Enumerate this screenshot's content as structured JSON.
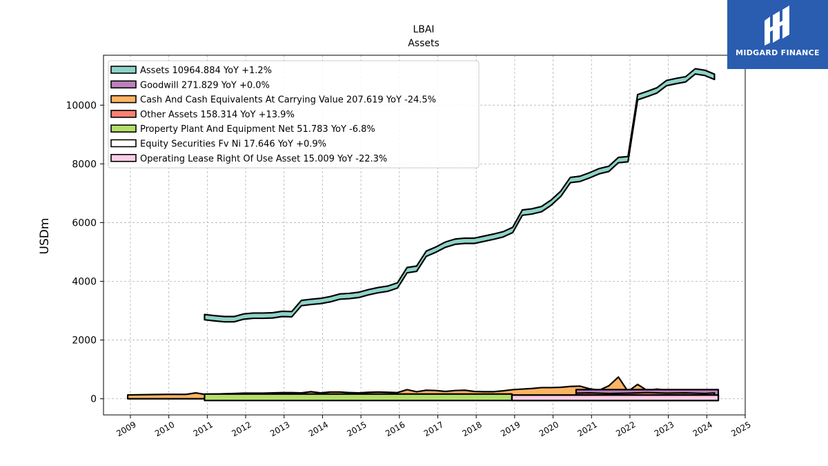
{
  "brand": {
    "name": "MIDGARD FINANCE",
    "bg_color": "#2a5db0"
  },
  "chart_data": {
    "type": "area",
    "title": "LBAI",
    "subtitle": "Assets",
    "ylabel": "USDm",
    "xlabel": "",
    "xlim": [
      2008.3,
      2025.0
    ],
    "ylim": [
      -550,
      11700
    ],
    "x_ticks": [
      2009,
      2010,
      2011,
      2012,
      2013,
      2014,
      2015,
      2016,
      2017,
      2018,
      2019,
      2020,
      2021,
      2022,
      2023,
      2024,
      2025
    ],
    "y_ticks": [
      0,
      2000,
      4000,
      6000,
      8000,
      10000
    ],
    "grid": true,
    "legend_position": "top-left",
    "series": [
      {
        "name": "Assets",
        "legend_label": "Assets  10964.884 YoY +1.2%",
        "color": "#8dd3c7",
        "x": [
          2010.93,
          2011.2,
          2011.45,
          2011.7,
          2011.95,
          2012.2,
          2012.45,
          2012.7,
          2012.95,
          2013.2,
          2013.45,
          2013.7,
          2013.95,
          2014.2,
          2014.45,
          2014.7,
          2014.95,
          2015.2,
          2015.45,
          2015.7,
          2015.95,
          2016.2,
          2016.45,
          2016.7,
          2016.95,
          2017.2,
          2017.45,
          2017.7,
          2017.95,
          2018.2,
          2018.45,
          2018.7,
          2018.95,
          2019.2,
          2019.45,
          2019.7,
          2019.95,
          2020.2,
          2020.45,
          2020.7,
          2020.95,
          2021.2,
          2021.45,
          2021.7,
          2021.95,
          2022.2,
          2022.45,
          2022.7,
          2022.95,
          2023.2,
          2023.45,
          2023.7,
          2023.95,
          2024.2
        ],
        "values": [
          2780,
          2740,
          2710,
          2710,
          2800,
          2830,
          2830,
          2840,
          2890,
          2880,
          3260,
          3300,
          3330,
          3390,
          3480,
          3500,
          3540,
          3630,
          3700,
          3750,
          3860,
          4380,
          4430,
          4940,
          5080,
          5250,
          5350,
          5380,
          5380,
          5450,
          5520,
          5600,
          5750,
          6340,
          6380,
          6460,
          6680,
          6980,
          7450,
          7490,
          7610,
          7750,
          7830,
          8130,
          8160,
          10270,
          10380,
          10500,
          10750,
          10820,
          10880,
          11150,
          11100,
          10964.884
        ]
      },
      {
        "name": "Goodwill",
        "legend_label": "Goodwill  271.829 YoY +0.0%",
        "color": "#bc80bd",
        "x": [
          2020.6,
          2024.3
        ],
        "values": [
          271.829,
          271.829
        ]
      },
      {
        "name": "Cash And Cash Equivalents At Carrying Value",
        "legend_label": "Cash And Cash Equivalents At Carrying Value  207.619 YoY -24.5%",
        "color": "#fdb462",
        "x": [
          2008.93,
          2009.45,
          2009.95,
          2010.45,
          2010.7,
          2010.93,
          2011.2,
          2011.45,
          2011.7,
          2011.95,
          2012.2,
          2012.45,
          2012.7,
          2012.95,
          2013.2,
          2013.45,
          2013.7,
          2013.95,
          2014.2,
          2014.45,
          2014.7,
          2014.95,
          2015.2,
          2015.45,
          2015.7,
          2015.95,
          2016.2,
          2016.45,
          2016.7,
          2016.95,
          2017.2,
          2017.45,
          2017.7,
          2017.95,
          2018.2,
          2018.45,
          2018.7,
          2018.95,
          2019.2,
          2019.45,
          2019.7,
          2019.95,
          2020.2,
          2020.45,
          2020.7,
          2020.95,
          2021.2,
          2021.45,
          2021.7,
          2021.95,
          2022.2,
          2022.45,
          2022.7,
          2022.95,
          2023.2,
          2023.45,
          2023.7,
          2023.95,
          2024.2
        ],
        "values": [
          90,
          100,
          110,
          110,
          160,
          110,
          120,
          130,
          140,
          150,
          150,
          150,
          160,
          170,
          170,
          160,
          200,
          160,
          190,
          190,
          170,
          160,
          180,
          190,
          180,
          170,
          270,
          200,
          250,
          240,
          210,
          240,
          250,
          210,
          200,
          200,
          230,
          270,
          290,
          310,
          340,
          340,
          350,
          380,
          390,
          300,
          250,
          400,
          700,
          210,
          450,
          240,
          290,
          250,
          250,
          220,
          260,
          240,
          207.619
        ]
      },
      {
        "name": "Other Assets",
        "legend_label": "Other Assets  158.314 YoY +13.9%",
        "color": "#fb8072",
        "x": [
          2020.6,
          2020.95,
          2021.45,
          2021.95,
          2022.2,
          2022.45,
          2022.95,
          2023.45,
          2023.95,
          2024.2
        ],
        "values": [
          150,
          160,
          140,
          150,
          160,
          170,
          150,
          160,
          140,
          158.314
        ]
      },
      {
        "name": "Property Plant And Equipment Net",
        "legend_label": "Property Plant And Equipment Net  51.783 YoY -6.8%",
        "color": "#b3de69",
        "x": [
          2010.93,
          2018.93
        ],
        "values": [
          51.783,
          51.783
        ]
      },
      {
        "name": "Equity Securities Fv Ni",
        "legend_label": "Equity Securities Fv Ni  17.646 YoY +0.9%",
        "color": "#ffffff",
        "x": [
          2018.93,
          2024.3
        ],
        "values": [
          17.646,
          17.646
        ]
      },
      {
        "name": "Operating Lease Right Of Use Asset",
        "legend_label": "Operating Lease Right Of Use Asset  15.009 YoY -22.3%",
        "color": "#fccde5",
        "x": [
          2018.93,
          2024.3
        ],
        "values": [
          15.009,
          15.009
        ]
      }
    ]
  }
}
